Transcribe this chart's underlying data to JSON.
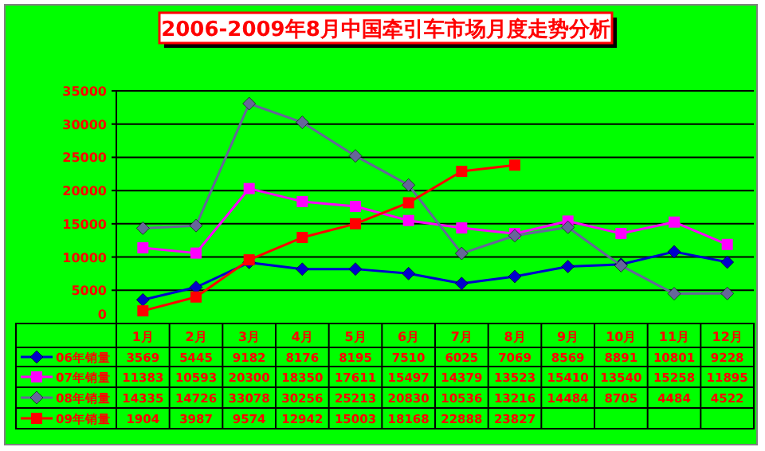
{
  "chart_data": {
    "type": "line",
    "title": "2006-2009年8月中国牵引车市场月度走势分析",
    "categories": [
      "1月",
      "2月",
      "3月",
      "4月",
      "5月",
      "6月",
      "7月",
      "8月",
      "9月",
      "10月",
      "11月",
      "12月"
    ],
    "series": [
      {
        "name": "06年销量",
        "color": "#0000cc",
        "marker": "diamond",
        "values": [
          3569,
          5445,
          9182,
          8176,
          8195,
          7510,
          6025,
          7069,
          8569,
          8891,
          10801,
          9228
        ]
      },
      {
        "name": "07年销量",
        "color": "#ff00ff",
        "marker": "square",
        "values": [
          11383,
          10593,
          20300,
          18350,
          17611,
          15497,
          14379,
          13523,
          15410,
          13540,
          15258,
          11895
        ]
      },
      {
        "name": "08年销量",
        "color": "#666699",
        "marker": "diamond",
        "values": [
          14335,
          14726,
          33078,
          30256,
          25213,
          20830,
          10536,
          13216,
          14484,
          8705,
          4484,
          4522
        ]
      },
      {
        "name": "09年销量",
        "color": "#ff0000",
        "marker": "square",
        "values": [
          1904,
          3987,
          9574,
          12942,
          15003,
          18168,
          22888,
          23827,
          null,
          null,
          null,
          null
        ]
      }
    ],
    "ylim": [
      0,
      35000
    ],
    "yticks": [
      0,
      5000,
      10000,
      15000,
      20000,
      25000,
      30000,
      35000
    ],
    "grid": "y",
    "legend": "bottom",
    "data_labels": true
  }
}
